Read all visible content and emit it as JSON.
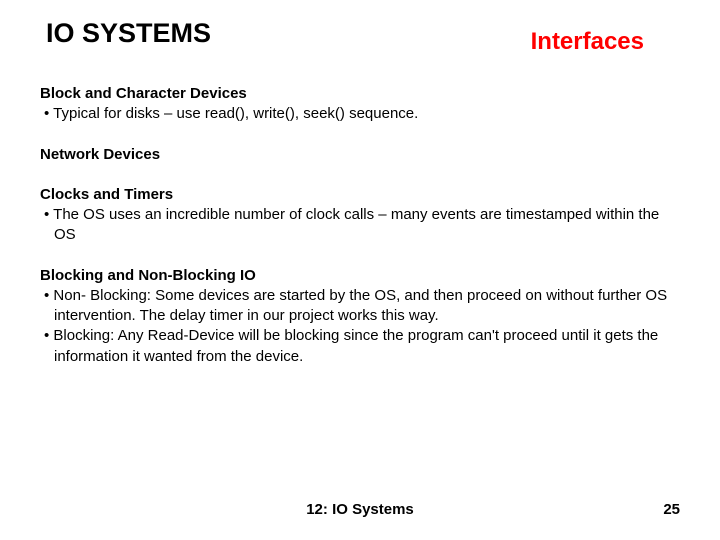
{
  "header": {
    "title": "IO SYSTEMS",
    "subtitle": "Interfaces"
  },
  "sections": [
    {
      "heading": "Block and Character Devices",
      "bullets": [
        "Typical for disks – use  read(), write(), seek() sequence."
      ]
    },
    {
      "heading": "Network Devices",
      "bullets": []
    },
    {
      "heading": "Clocks and Timers",
      "bullets": [
        "The OS uses an incredible number of clock calls – many events are timestamped within the OS"
      ]
    },
    {
      "heading": "Blocking and Non-Blocking IO",
      "bullets": [
        "Non- Blocking: Some devices are started by the OS, and then proceed on without further OS intervention.  The delay timer in our project works this way.",
        "Blocking:  Any Read-Device will be blocking since the program can't proceed until it gets the information it wanted from the device."
      ]
    }
  ],
  "footer": {
    "center": "12: IO Systems",
    "page": "25"
  },
  "colors": {
    "title_color": "#000000",
    "subtitle_color": "#ff0000",
    "text_color": "#000000",
    "background": "#ffffff"
  },
  "typography": {
    "title_fontsize": 27,
    "subtitle_fontsize": 24,
    "body_fontsize": 15,
    "footer_fontsize": 15,
    "font_family": "Arial"
  }
}
